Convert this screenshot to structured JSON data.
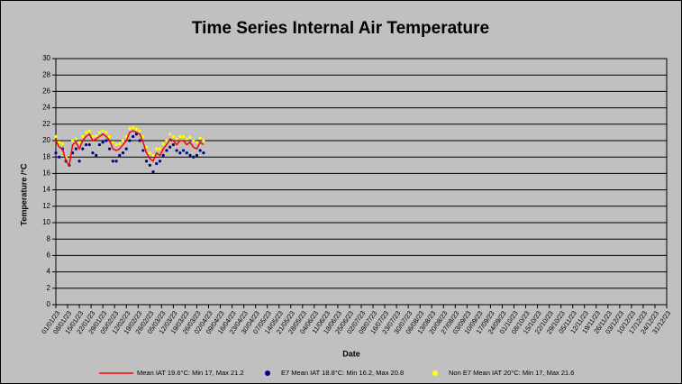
{
  "chart_data": {
    "type": "scatter",
    "title": "Time Series Internal Air Temperature",
    "x_label": "Date",
    "y_label": "Temperature /°C",
    "x": [
      0,
      2,
      4,
      6,
      8,
      10,
      12,
      14,
      16,
      18,
      20,
      22,
      24,
      26,
      28,
      30,
      32,
      34,
      36,
      38,
      40,
      42,
      44,
      46,
      48,
      50,
      52,
      54,
      56,
      58,
      60,
      62,
      64,
      66,
      68,
      70,
      72,
      74,
      76,
      78,
      80,
      82,
      84,
      86,
      88
    ],
    "series": [
      {
        "name": "Mean IAT 19.6°C: Min 17, Max 21.2",
        "color": "#ff0000",
        "style": "line",
        "values": [
          20,
          19.2,
          19,
          17.5,
          17,
          19.5,
          19.8,
          19,
          20,
          20.5,
          20.8,
          20,
          20.2,
          20.5,
          20.8,
          20.5,
          20,
          19,
          18.8,
          19,
          19.5,
          20,
          21,
          21.2,
          21,
          20.8,
          19.8,
          18.5,
          17.8,
          17.5,
          18.5,
          18.2,
          19,
          19.5,
          20.2,
          20,
          19.5,
          20,
          20,
          19.5,
          19.8,
          19.2,
          19,
          19.8,
          19.5
        ]
      },
      {
        "name": "E7 Mean IAT 18.8°C: Min 16.2, Max 20.8",
        "color": "#000080",
        "style": "points",
        "values": [
          18.5,
          18,
          19,
          17.5,
          17,
          18.5,
          19,
          17.5,
          19,
          19.5,
          19.5,
          18.5,
          18.2,
          19.5,
          19.8,
          20,
          19,
          17.5,
          17.5,
          18.2,
          18.5,
          19,
          20,
          20.5,
          20.8,
          20,
          18.8,
          17.5,
          17,
          16.2,
          17.2,
          17.5,
          18.2,
          18.8,
          19.2,
          19.5,
          18.8,
          18.5,
          18.8,
          18.5,
          18.2,
          18,
          18.2,
          18.8,
          18.5
        ]
      },
      {
        "name": "Non E7 Mean IAT 20°C: Min 17, Max 21.6",
        "color": "#ffff00",
        "style": "points",
        "values": [
          20.5,
          19.8,
          19.6,
          18,
          17,
          20,
          20.2,
          19.8,
          20.5,
          21,
          21.2,
          20.5,
          20.6,
          21,
          21.2,
          21,
          20.5,
          19.8,
          19.5,
          19.6,
          20,
          20.5,
          21.5,
          21.6,
          21.4,
          21.2,
          20.5,
          19.2,
          18.5,
          18.2,
          19,
          19,
          19.6,
          20,
          20.8,
          20.5,
          20.2,
          20.5,
          20.5,
          20.2,
          20.4,
          20,
          19.8,
          20.3,
          20
        ]
      }
    ],
    "xlim": [
      0,
      364
    ],
    "ylim": [
      0,
      30
    ],
    "yticks": [
      0,
      2,
      4,
      6,
      8,
      10,
      12,
      14,
      16,
      18,
      20,
      22,
      24,
      26,
      28,
      30
    ],
    "xticks": [
      {
        "value": 0,
        "label": "01/01/23"
      },
      {
        "value": 7,
        "label": "08/01/23"
      },
      {
        "value": 14,
        "label": "15/01/23"
      },
      {
        "value": 21,
        "label": "22/01/23"
      },
      {
        "value": 28,
        "label": "29/01/23"
      },
      {
        "value": 35,
        "label": "05/02/23"
      },
      {
        "value": 42,
        "label": "12/02/23"
      },
      {
        "value": 49,
        "label": "19/02/23"
      },
      {
        "value": 56,
        "label": "26/02/23"
      },
      {
        "value": 63,
        "label": "05/03/23"
      },
      {
        "value": 70,
        "label": "12/03/23"
      },
      {
        "value": 77,
        "label": "19/03/23"
      },
      {
        "value": 84,
        "label": "26/03/23"
      },
      {
        "value": 91,
        "label": "02/04/23"
      },
      {
        "value": 98,
        "label": "09/04/23"
      },
      {
        "value": 105,
        "label": "16/04/23"
      },
      {
        "value": 112,
        "label": "23/04/23"
      },
      {
        "value": 119,
        "label": "30/04/23"
      },
      {
        "value": 126,
        "label": "07/05/23"
      },
      {
        "value": 133,
        "label": "14/05/23"
      },
      {
        "value": 140,
        "label": "21/05/23"
      },
      {
        "value": 147,
        "label": "28/05/23"
      },
      {
        "value": 154,
        "label": "04/06/23"
      },
      {
        "value": 161,
        "label": "11/06/23"
      },
      {
        "value": 168,
        "label": "18/06/23"
      },
      {
        "value": 175,
        "label": "25/06/23"
      },
      {
        "value": 182,
        "label": "02/07/23"
      },
      {
        "value": 189,
        "label": "09/07/23"
      },
      {
        "value": 196,
        "label": "16/07/23"
      },
      {
        "value": 203,
        "label": "23/07/23"
      },
      {
        "value": 210,
        "label": "30/07/23"
      },
      {
        "value": 217,
        "label": "06/08/23"
      },
      {
        "value": 224,
        "label": "13/08/23"
      },
      {
        "value": 231,
        "label": "20/08/23"
      },
      {
        "value": 238,
        "label": "27/08/23"
      },
      {
        "value": 245,
        "label": "03/09/23"
      },
      {
        "value": 252,
        "label": "10/09/23"
      },
      {
        "value": 259,
        "label": "17/09/23"
      },
      {
        "value": 266,
        "label": "24/09/23"
      },
      {
        "value": 273,
        "label": "01/10/23"
      },
      {
        "value": 280,
        "label": "08/10/23"
      },
      {
        "value": 287,
        "label": "15/10/23"
      },
      {
        "value": 294,
        "label": "22/10/23"
      },
      {
        "value": 301,
        "label": "29/10/23"
      },
      {
        "value": 308,
        "label": "05/11/23"
      },
      {
        "value": 315,
        "label": "12/11/23"
      },
      {
        "value": 322,
        "label": "19/11/23"
      },
      {
        "value": 329,
        "label": "26/11/23"
      },
      {
        "value": 336,
        "label": "03/12/23"
      },
      {
        "value": 343,
        "label": "10/12/23"
      },
      {
        "value": 350,
        "label": "17/12/23"
      },
      {
        "value": 357,
        "label": "24/12/23"
      },
      {
        "value": 364,
        "label": "31/12/23"
      }
    ],
    "grid": true,
    "legend": "bottom"
  }
}
